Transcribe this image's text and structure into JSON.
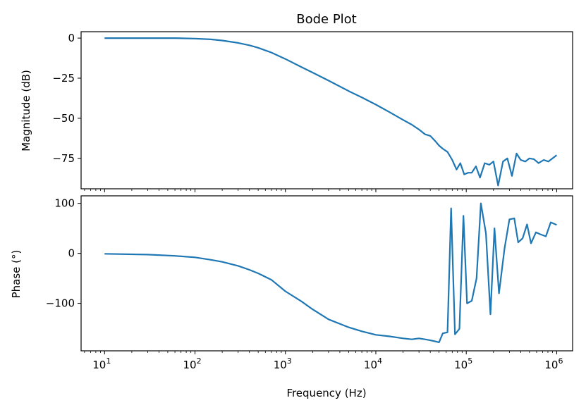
{
  "chart_data": [
    {
      "type": "line",
      "title": "Bode Plot",
      "xlabel": "",
      "ylabel": "Magnitude (dB)",
      "xscale": "log",
      "xlim": [
        5.5,
        1500000
      ],
      "ylim": [
        -94,
        4
      ],
      "y_ticks": [
        0,
        -25,
        -50,
        -75
      ],
      "y_tick_labels": [
        "0",
        "−25",
        "−50",
        "−75"
      ],
      "grid": false,
      "color": "#1f77b4",
      "series": [
        {
          "points": [
            [
              10,
              0
            ],
            [
              30,
              0
            ],
            [
              60,
              0
            ],
            [
              100,
              -0.3
            ],
            [
              150,
              -0.8
            ],
            [
              200,
              -1.5
            ],
            [
              300,
              -3
            ],
            [
              400,
              -4.5
            ],
            [
              500,
              -6
            ],
            [
              700,
              -9
            ],
            [
              1000,
              -13
            ],
            [
              1500,
              -18
            ],
            [
              2000,
              -21.5
            ],
            [
              3000,
              -26.5
            ],
            [
              5000,
              -33
            ],
            [
              7000,
              -37
            ],
            [
              10000,
              -41.5
            ],
            [
              14000,
              -46
            ],
            [
              20000,
              -51
            ],
            [
              25000,
              -54
            ],
            [
              30000,
              -57
            ],
            [
              35000,
              -60
            ],
            [
              40000,
              -61
            ],
            [
              45000,
              -64
            ],
            [
              50000,
              -67
            ],
            [
              55000,
              -69
            ],
            [
              62000,
              -71
            ],
            [
              70000,
              -76
            ],
            [
              78000,
              -82
            ],
            [
              86000,
              -78
            ],
            [
              95000,
              -85
            ],
            [
              105000,
              -84
            ],
            [
              115000,
              -84
            ],
            [
              128000,
              -80
            ],
            [
              142000,
              -87
            ],
            [
              160000,
              -78
            ],
            [
              180000,
              -79
            ],
            [
              200000,
              -77
            ],
            [
              225000,
              -92
            ],
            [
              255000,
              -77
            ],
            [
              285000,
              -75
            ],
            [
              320000,
              -86
            ],
            [
              360000,
              -72
            ],
            [
              400000,
              -76
            ],
            [
              450000,
              -77
            ],
            [
              500000,
              -75
            ],
            [
              560000,
              -75.5
            ],
            [
              630000,
              -78
            ],
            [
              720000,
              -76
            ],
            [
              810000,
              -77
            ],
            [
              1000000,
              -73
            ]
          ]
        }
      ]
    },
    {
      "type": "line",
      "title": "",
      "xlabel": "Frequency (Hz)",
      "ylabel": "Phase (°)",
      "xscale": "log",
      "xlim": [
        5.5,
        1500000
      ],
      "ylim": [
        -195,
        115
      ],
      "x_ticks": [
        10,
        100,
        1000,
        10000,
        100000,
        1000000
      ],
      "x_tick_labels": [
        {
          "base": "10",
          "exp": "1"
        },
        {
          "base": "10",
          "exp": "2"
        },
        {
          "base": "10",
          "exp": "3"
        },
        {
          "base": "10",
          "exp": "4"
        },
        {
          "base": "10",
          "exp": "5"
        },
        {
          "base": "10",
          "exp": "6"
        }
      ],
      "y_ticks": [
        100,
        0,
        -100
      ],
      "y_tick_labels": [
        "100",
        "0",
        "−100"
      ],
      "grid": false,
      "color": "#1f77b4",
      "series": [
        {
          "points": [
            [
              10,
              -1
            ],
            [
              30,
              -2.5
            ],
            [
              60,
              -5
            ],
            [
              100,
              -8
            ],
            [
              150,
              -13
            ],
            [
              200,
              -17
            ],
            [
              300,
              -25
            ],
            [
              400,
              -33
            ],
            [
              500,
              -40
            ],
            [
              700,
              -53
            ],
            [
              1000,
              -76
            ],
            [
              1500,
              -96
            ],
            [
              2000,
              -112
            ],
            [
              3000,
              -132
            ],
            [
              5000,
              -148
            ],
            [
              7000,
              -156
            ],
            [
              10000,
              -163
            ],
            [
              14000,
              -166
            ],
            [
              20000,
              -170
            ],
            [
              25000,
              -172
            ],
            [
              30000,
              -170
            ],
            [
              35000,
              -172
            ],
            [
              40000,
              -174
            ],
            [
              45000,
              -176
            ],
            [
              50000,
              -178
            ],
            [
              55000,
              -160
            ],
            [
              62000,
              -158
            ],
            [
              68000,
              90
            ],
            [
              75000,
              -162
            ],
            [
              84000,
              -151
            ],
            [
              93000,
              75
            ],
            [
              102000,
              -100
            ],
            [
              115000,
              -95
            ],
            [
              130000,
              -50
            ],
            [
              145000,
              100
            ],
            [
              165000,
              40
            ],
            [
              185000,
              -122
            ],
            [
              205000,
              50
            ],
            [
              230000,
              -80
            ],
            [
              265000,
              10
            ],
            [
              300000,
              68
            ],
            [
              340000,
              70
            ],
            [
              375000,
              22
            ],
            [
              420000,
              30
            ],
            [
              470000,
              58
            ],
            [
              520000,
              20
            ],
            [
              590000,
              42
            ],
            [
              660000,
              38
            ],
            [
              760000,
              34
            ],
            [
              860000,
              62
            ],
            [
              1000000,
              57
            ]
          ]
        }
      ]
    }
  ]
}
